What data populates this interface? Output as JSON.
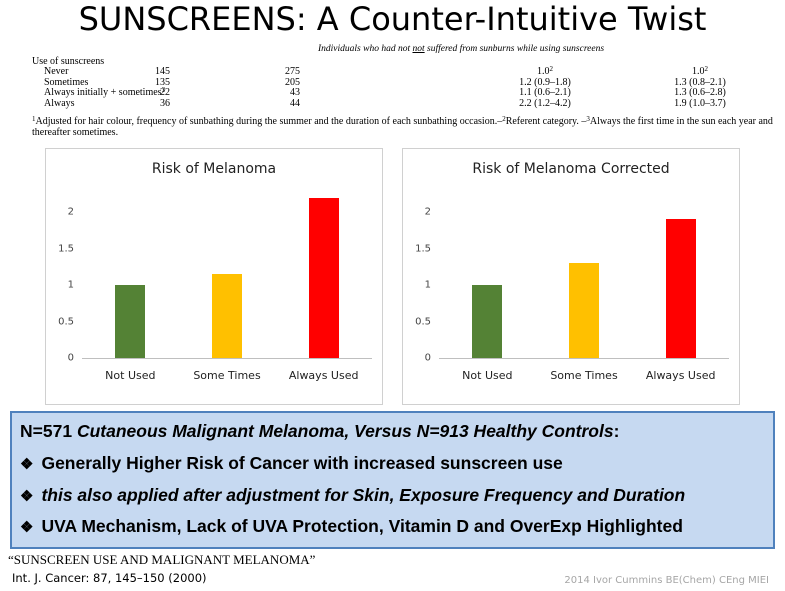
{
  "title": "SUNSCREENS: A Counter-Intuitive Twist",
  "table": {
    "caption": [
      "Individuals who had not ",
      "not",
      " suffered from sunburns while using sunscreens"
    ],
    "header": "Use of sunscreens",
    "rows": [
      [
        "Never",
        "145",
        "275",
        {
          "text": "1.0",
          "sup": "2"
        },
        {
          "text": "1.0",
          "sup": "2"
        }
      ],
      [
        "Sometimes",
        "135",
        "205",
        "1.2 (0.9–1.8)",
        "1.3 (0.8–2.1)"
      ],
      [
        {
          "text": "Always initially + sometimes",
          "sup": "3"
        },
        "22",
        "43",
        "1.1 (0.6–2.1)",
        "1.3 (0.6–2.8)"
      ],
      [
        "Always",
        "36",
        "44",
        "2.2 (1.2–4.2)",
        "1.9 (1.0–3.7)"
      ]
    ],
    "footnote": [
      {
        "sup": "1",
        "text": "Adjusted for hair colour, frequency of sunbathing during the summer and the duration of each sunbathing occasion.–"
      },
      {
        "sup": "2",
        "text": "Referent category. –"
      },
      {
        "sup": "3",
        "text": "Always the first time in the sun each year and thereafter sometimes."
      }
    ]
  },
  "chart_data": [
    {
      "type": "bar",
      "title": "Risk of Melanoma",
      "categories": [
        "Not Used",
        "Some Times",
        "Always Used"
      ],
      "values": [
        1,
        1.15,
        2.2
      ],
      "colors": [
        "#548235",
        "#ffc000",
        "#ff0000"
      ],
      "ylim": [
        0,
        2.4
      ],
      "yticks": [
        0,
        0.5,
        1,
        1.5,
        2
      ]
    },
    {
      "type": "bar",
      "title": "Risk of Melanoma Corrected",
      "categories": [
        "Not Used",
        "Some Times",
        "Always Used"
      ],
      "values": [
        1,
        1.3,
        1.9
      ],
      "colors": [
        "#548235",
        "#ffc000",
        "#ff0000"
      ],
      "ylim": [
        0,
        2.4
      ],
      "yticks": [
        0,
        0.5,
        1,
        1.5,
        2
      ]
    }
  ],
  "box": {
    "heading": [
      "N=571",
      "Cutaneous Malignant Melanoma, Versus N=913 Healthy Controls",
      ":"
    ],
    "bullets": [
      "Generally Higher Risk of Cancer with increased sunscreen use",
      "this also applied after adjustment for Skin, Exposure Frequency and Duration",
      "UVA Mechanism, Lack of UVA Protection, Vitamin D and OverExp Highlighted"
    ]
  },
  "footer": {
    "reference": "“SUNSCREEN USE AND MALIGNANT MELANOMA”",
    "journal": "Int. J. Cancer: 87, 145–150 (2000)",
    "credit": "2014 Ivor Cummins BE(Chem) CEng MIEI"
  }
}
